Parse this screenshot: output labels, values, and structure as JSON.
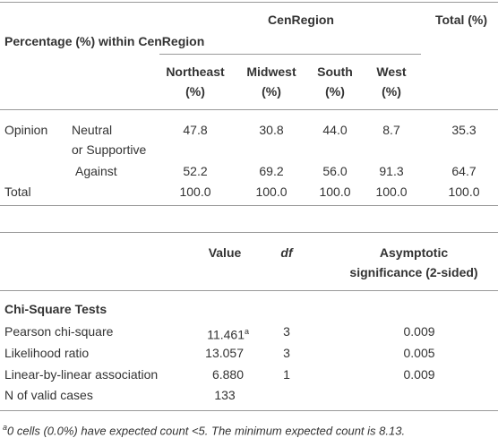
{
  "crosstab": {
    "corner": "Percentage (%) within CenRegion",
    "group_header": "CenRegion",
    "total_header": "Total (%)",
    "columns": [
      [
        "Northeast",
        "(%)"
      ],
      [
        "Midwest",
        "(%)"
      ],
      [
        "South",
        "(%)"
      ],
      [
        "West",
        "(%)"
      ]
    ],
    "rows": [
      {
        "group": "Opinion",
        "label": [
          "Neutral",
          "or Supportive"
        ],
        "values": [
          "47.8",
          "30.8",
          "44.0",
          "8.7",
          "35.3"
        ]
      },
      {
        "label": [
          "Against"
        ],
        "values": [
          "52.2",
          "69.2",
          "56.0",
          "91.3",
          "64.7"
        ]
      },
      {
        "group": "Total",
        "values": [
          "100.0",
          "100.0",
          "100.0",
          "100.0",
          "100.0"
        ]
      }
    ]
  },
  "tests": {
    "headers": {
      "value": "Value",
      "df": "df",
      "significance": [
        "Asymptotic",
        "significance (2-sided)"
      ]
    },
    "title": "Chi-Square Tests",
    "rows": [
      {
        "label": "Pearson chi-square",
        "value": "11.461",
        "note": "a",
        "df": "3",
        "significance": "0.009"
      },
      {
        "label": "Likelihood ratio",
        "value": "13.057",
        "df": "3",
        "significance": "0.005"
      },
      {
        "label": "Linear-by-linear association",
        "value": "6.880",
        "df": "1",
        "significance": "0.009"
      },
      {
        "label": "N of valid cases",
        "value": "133"
      }
    ],
    "footnote": {
      "marker": "a",
      "text": "0 cells (0.0%) have expected count <5. The minimum expected count is 8.13."
    }
  }
}
